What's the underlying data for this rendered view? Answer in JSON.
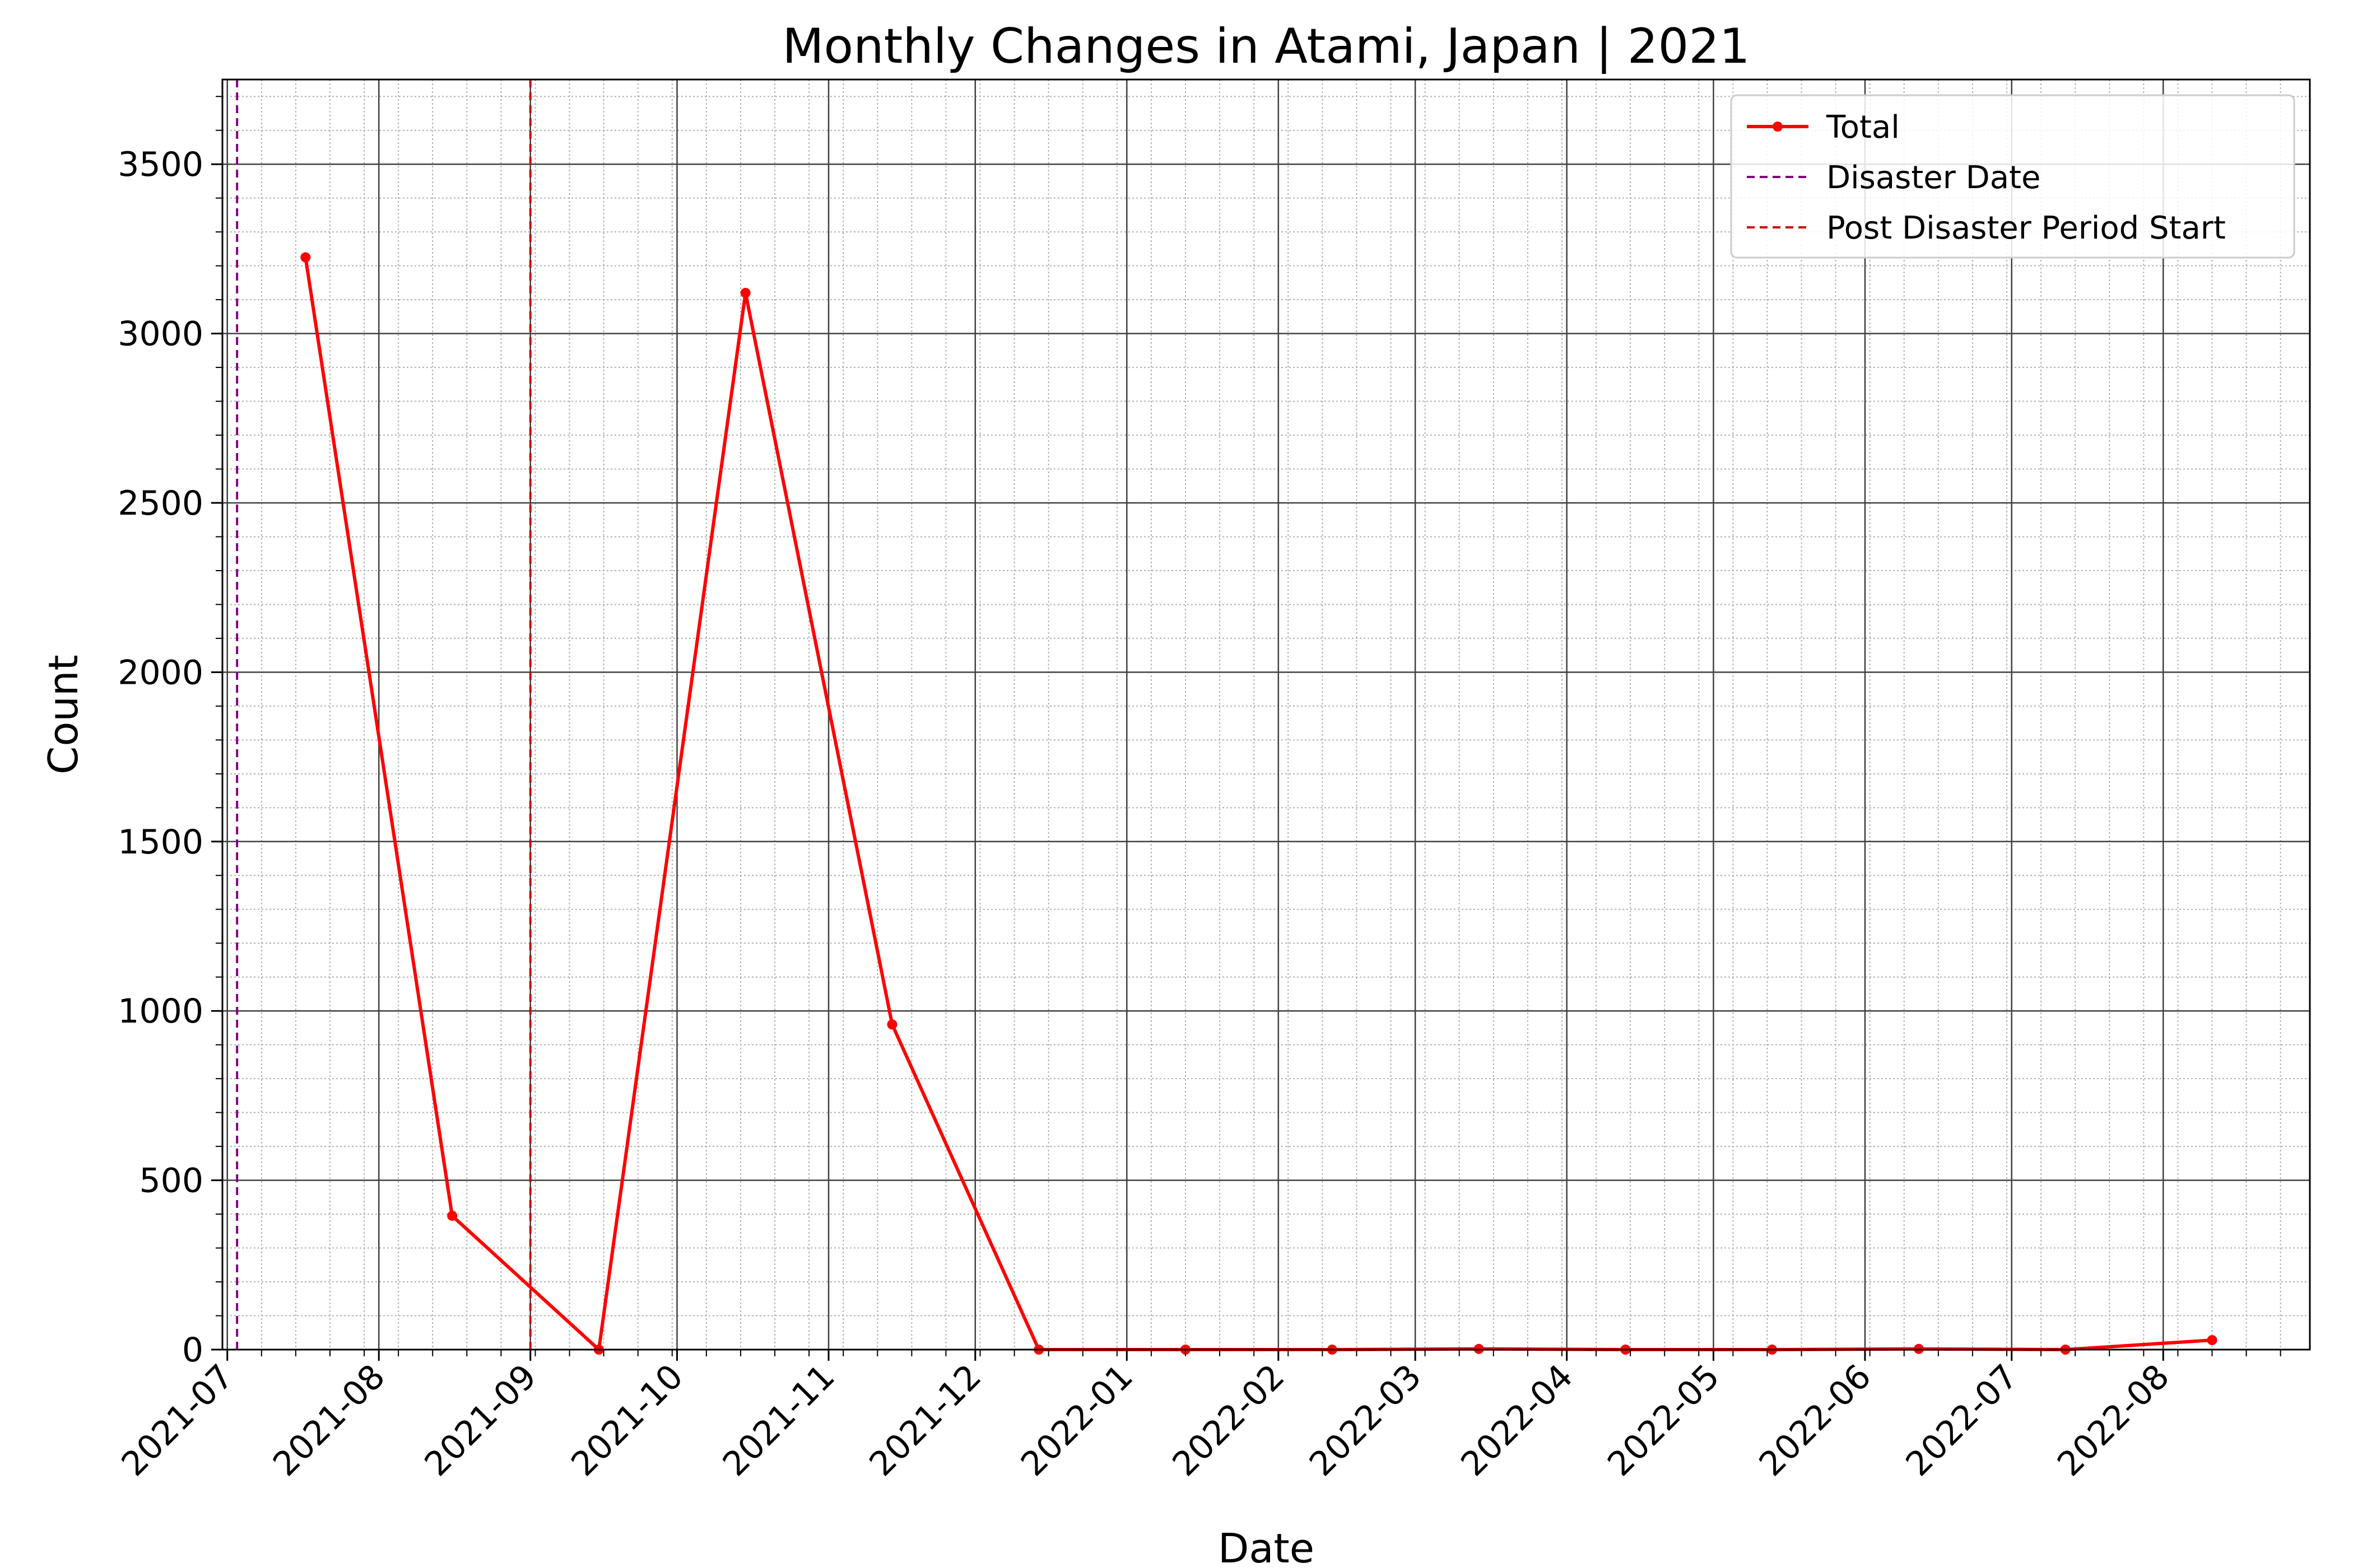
{
  "chart_data": {
    "type": "line",
    "title": "Monthly Changes in Atami, Japan | 2021",
    "xlabel": "Date",
    "ylabel": "Count",
    "xlim": [
      "2021-06-30",
      "2022-08-31"
    ],
    "ylim": [
      0,
      3750
    ],
    "grid": true,
    "legend_position": "top-right",
    "x_ticks": [
      "2021-07",
      "2021-08",
      "2021-09",
      "2021-10",
      "2021-11",
      "2021-12",
      "2022-01",
      "2022-02",
      "2022-03",
      "2022-04",
      "2022-05",
      "2022-06",
      "2022-07",
      "2022-08"
    ],
    "y_ticks": [
      0,
      500,
      1000,
      1500,
      2000,
      2500,
      3000,
      3500
    ],
    "series": [
      {
        "name": "Total",
        "color": "#ff0000",
        "x": [
          "2021-07-17",
          "2021-08-16",
          "2021-09-15",
          "2021-10-15",
          "2021-11-14",
          "2021-12-14",
          "2022-01-13",
          "2022-02-12",
          "2022-03-14",
          "2022-04-13",
          "2022-05-13",
          "2022-06-12",
          "2022-07-12",
          "2022-08-11"
        ],
        "values": [
          3225,
          395,
          0,
          3120,
          960,
          0,
          0,
          0,
          2,
          0,
          0,
          2,
          0,
          28
        ]
      }
    ],
    "vlines": [
      {
        "name": "Disaster Date",
        "date": "2021-07-03",
        "color": "#800080",
        "style": "dashed"
      },
      {
        "name": "Post Disaster Period Start",
        "date": "2021-09-01",
        "color": "#cc0000",
        "style": "dashed"
      }
    ]
  }
}
